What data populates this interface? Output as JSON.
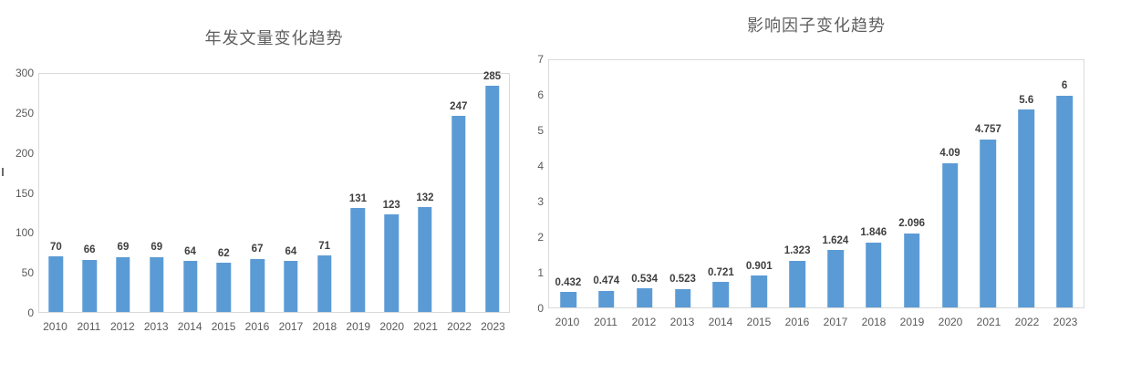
{
  "page": {
    "background_color": "#ffffff",
    "bar_color": "#5b9bd5",
    "plot_border_color": "#d9d9d9",
    "title_color": "#5f5f5f",
    "axis_text_color": "#595959",
    "data_label_color": "#3f3f3f"
  },
  "chart_data": [
    {
      "type": "bar",
      "title": "年发文量变化趋势",
      "categories": [
        "2010",
        "2011",
        "2012",
        "2013",
        "2014",
        "2015",
        "2016",
        "2017",
        "2018",
        "2019",
        "2020",
        "2021",
        "2022",
        "2023"
      ],
      "values": [
        70,
        66,
        69,
        69,
        64,
        62,
        67,
        64,
        71,
        131,
        123,
        132,
        247,
        285
      ],
      "value_labels": [
        "70",
        "66",
        "69",
        "69",
        "64",
        "62",
        "67",
        "64",
        "71",
        "131",
        "123",
        "132",
        "247",
        "285"
      ],
      "xlabel": "",
      "ylabel": "",
      "ylim": [
        0,
        300
      ],
      "yticks": [
        0,
        50,
        100,
        150,
        200,
        250,
        300
      ],
      "grid": false,
      "legend": "none",
      "bar_color": "#5b9bd5"
    },
    {
      "type": "bar",
      "title": "影响因子变化趋势",
      "categories": [
        "2010",
        "2011",
        "2012",
        "2013",
        "2014",
        "2015",
        "2016",
        "2017",
        "2018",
        "2019",
        "2020",
        "2021",
        "2022",
        "2023"
      ],
      "values": [
        0.432,
        0.474,
        0.534,
        0.523,
        0.721,
        0.901,
        1.323,
        1.624,
        1.846,
        2.096,
        4.09,
        4.757,
        5.6,
        6
      ],
      "value_labels": [
        "0.432",
        "0.474",
        "0.534",
        "0.523",
        "0.721",
        "0.901",
        "1.323",
        "1.624",
        "1.846",
        "2.096",
        "4.09",
        "4.757",
        "5.6",
        "6"
      ],
      "xlabel": "",
      "ylabel": "",
      "ylim": [
        0,
        7
      ],
      "yticks": [
        0,
        1,
        2,
        3,
        4,
        5,
        6,
        7
      ],
      "grid": false,
      "legend": "none",
      "bar_color": "#5b9bd5"
    }
  ]
}
